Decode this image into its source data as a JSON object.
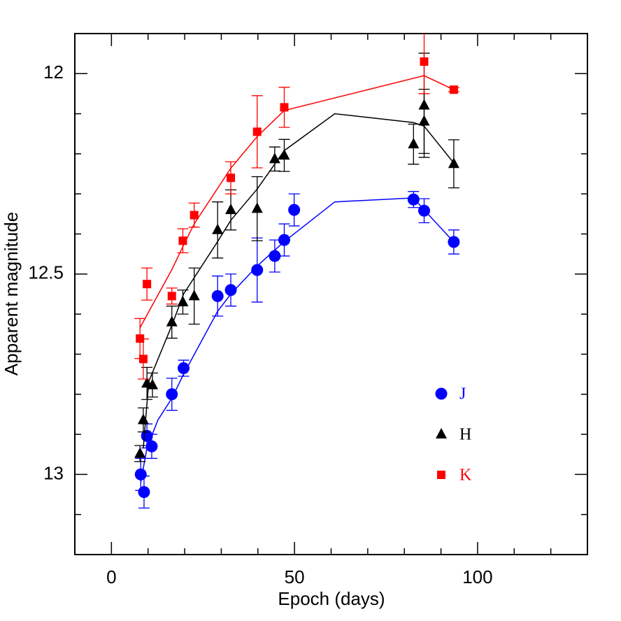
{
  "chart_data": {
    "type": "scatter",
    "x_label": "Epoch (days)",
    "y_label": "Apparent magnitude",
    "xlim": [
      -10,
      130
    ],
    "xticks": [
      0,
      50,
      100
    ],
    "xminorticks": [
      -10,
      10,
      20,
      30,
      40,
      60,
      70,
      80,
      90,
      110,
      120,
      130
    ],
    "ylim": [
      13.2,
      11.9
    ],
    "yticks": [
      12,
      12.5,
      13
    ],
    "yminorticks": [
      11.9,
      12.1,
      12.2,
      12.3,
      12.4,
      12.6,
      12.7,
      12.8,
      12.9,
      13.1,
      13.2
    ],
    "legend": "lower right",
    "series": [
      {
        "name": "J",
        "color": "#0000ff",
        "marker": "circle",
        "x": [
          8.0,
          8.9,
          9.7,
          11.0,
          16.5,
          19.7,
          29.0,
          32.6,
          39.8,
          44.6,
          47.2,
          49.9,
          82.5,
          85.4,
          93.5
        ],
        "values": [
          13.0,
          13.044,
          12.904,
          12.93,
          12.8,
          12.735,
          12.555,
          12.54,
          12.49,
          12.455,
          12.415,
          12.34,
          12.314,
          12.342,
          12.42
        ],
        "errors": [
          0.04,
          0.04,
          0.03,
          0.03,
          0.04,
          0.02,
          0.05,
          0.04,
          0.08,
          0.04,
          0.04,
          0.04,
          0.02,
          0.03,
          0.03
        ],
        "model": {
          "x": [
            8.0,
            9.7,
            12.7,
            16.5,
            19.7,
            29.0,
            32.6,
            39.8,
            47.2,
            61.0,
            82.5,
            85.4,
            93.5
          ],
          "values": [
            13.02,
            12.934,
            12.864,
            12.81,
            12.75,
            12.593,
            12.55,
            12.48,
            12.419,
            12.32,
            12.31,
            12.34,
            12.42
          ]
        }
      },
      {
        "name": "H",
        "color": "#000000",
        "marker": "triangle",
        "x": [
          7.8,
          8.7,
          9.7,
          11.2,
          16.5,
          19.5,
          22.6,
          29.0,
          32.6,
          39.8,
          44.6,
          47.2,
          82.5,
          85.4,
          85.4,
          93.5
        ],
        "values": [
          12.948,
          12.864,
          12.773,
          12.777,
          12.62,
          12.57,
          12.555,
          12.39,
          12.34,
          12.337,
          12.213,
          12.204,
          12.176,
          12.119,
          12.079,
          12.225
        ],
        "errors": [
          0.02,
          0.03,
          0.04,
          0.03,
          0.04,
          0.03,
          0.07,
          0.07,
          0.05,
          0.08,
          0.03,
          0.04,
          0.05,
          0.08,
          0.13,
          0.06
        ],
        "model": {
          "x": [
            8.7,
            10.2,
            16.5,
            19.7,
            29.0,
            32.6,
            39.8,
            47.2,
            61.0,
            82.5,
            85.4,
            93.5
          ],
          "values": [
            12.934,
            12.768,
            12.628,
            12.55,
            12.419,
            12.366,
            12.288,
            12.192,
            12.1,
            12.122,
            12.131,
            12.223
          ]
        }
      },
      {
        "name": "K",
        "color": "#ff0000",
        "marker": "square",
        "x": [
          7.8,
          8.7,
          9.7,
          16.5,
          19.5,
          22.6,
          32.6,
          39.8,
          47.2,
          85.4,
          93.5
        ],
        "values": [
          12.661,
          12.712,
          12.525,
          12.555,
          12.417,
          12.353,
          12.26,
          12.145,
          12.084,
          11.97,
          12.04
        ],
        "errors": [
          0.05,
          0.05,
          0.04,
          0.02,
          0.03,
          0.03,
          0.04,
          0.09,
          0.05,
          0.08,
          0.005
        ],
        "model": {
          "x": [
            7.8,
            16.5,
            19.7,
            22.6,
            32.6,
            39.8,
            47.2,
            85.4,
            93.5
          ],
          "values": [
            12.634,
            12.489,
            12.428,
            12.375,
            12.236,
            12.157,
            12.092,
            12.005,
            12.04
          ]
        }
      }
    ]
  }
}
